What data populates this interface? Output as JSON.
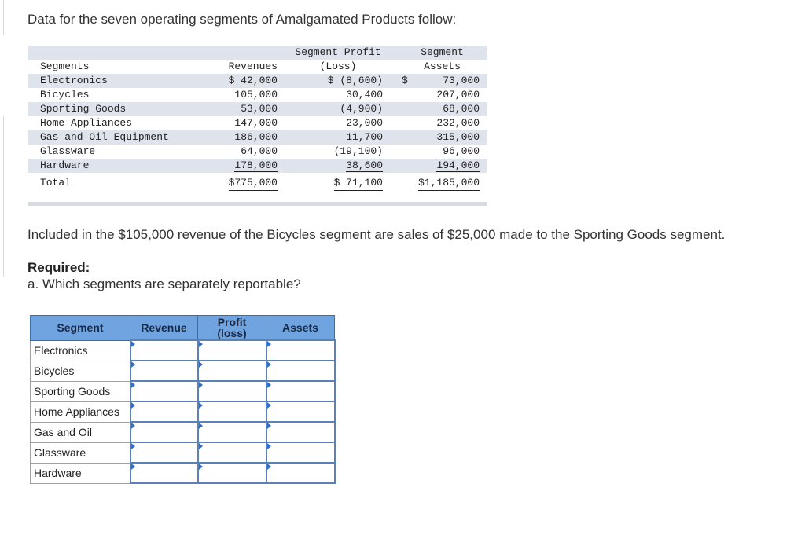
{
  "intro": "Data for the seven operating segments of Amalgamated Products follow:",
  "data_table": {
    "header_top": {
      "profit": "Segment Profit",
      "assets": "Segment"
    },
    "header_bottom": {
      "segment": "Segments",
      "revenues": "Revenues",
      "profit": "(Loss)",
      "assets": "Assets"
    },
    "rows": [
      {
        "segment": "Electronics",
        "revenue": "$ 42,000",
        "profit": "$ (8,600)",
        "dollar": "$",
        "assets": "73,000"
      },
      {
        "segment": "Bicycles",
        "revenue": "105,000",
        "profit": "30,400",
        "dollar": "",
        "assets": "207,000"
      },
      {
        "segment": "Sporting Goods",
        "revenue": "53,000",
        "profit": "(4,900)",
        "dollar": "",
        "assets": "68,000"
      },
      {
        "segment": "Home Appliances",
        "revenue": "147,000",
        "profit": "23,000",
        "dollar": "",
        "assets": "232,000"
      },
      {
        "segment": "Gas and Oil Equipment",
        "revenue": "186,000",
        "profit": "11,700",
        "dollar": "",
        "assets": "315,000"
      },
      {
        "segment": "Glassware",
        "revenue": "64,000",
        "profit": "(19,100)",
        "dollar": "",
        "assets": "96,000"
      },
      {
        "segment": "Hardware",
        "revenue": "178,000",
        "profit": "38,600",
        "dollar": "",
        "assets": "194,000"
      }
    ],
    "total": {
      "segment": "Total",
      "revenue": "$775,000",
      "profit": "$ 71,100",
      "assets": "$1,185,000"
    }
  },
  "paragraph": "Included in the $105,000 revenue of the Bicycles segment are sales of $25,000 made to the Sporting Goods segment.",
  "required_title": "Required:",
  "question": "a. Which segments are separately reportable?",
  "answer_table": {
    "headers": {
      "segment": "Segment",
      "revenue": "Revenue",
      "profit_line1": "Profit",
      "profit_line2": "(loss)",
      "assets": "Assets"
    },
    "rows": [
      "Electronics",
      "Bicycles",
      "Sporting Goods",
      "Home Appliances",
      "Gas and Oil",
      "Glassware",
      "Hardware"
    ]
  }
}
